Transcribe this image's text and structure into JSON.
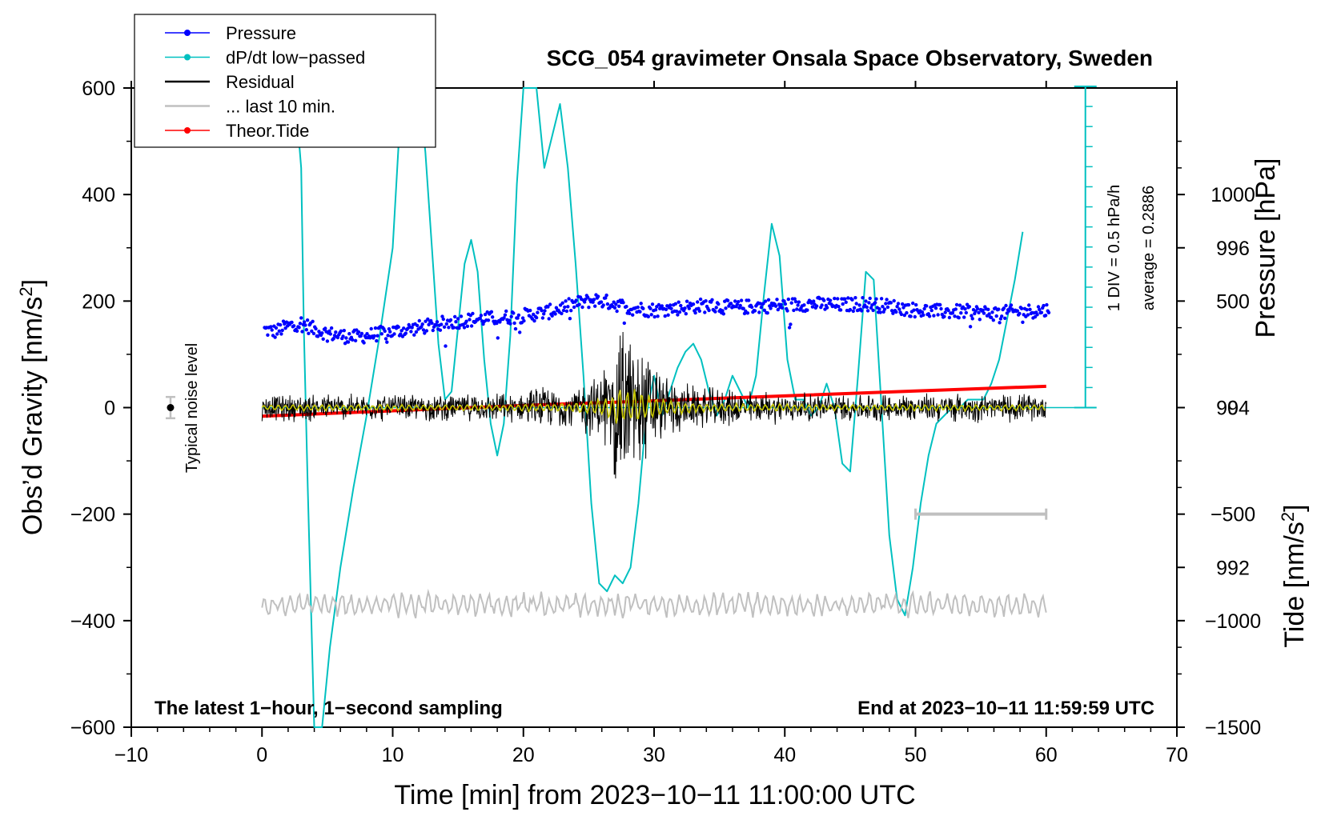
{
  "chart_data": {
    "type": "line",
    "title": "SCG_054 gravimeter Onsala Space Observatory, Sweden",
    "xlabel": "Time [min] from 2023−10−11 11:00:00 UTC",
    "ylabel_left": "Obs’d Gravity [nm/s",
    "ylabel_left_sup": "2",
    "ylabel_left_close": "]",
    "ylabel_right_pressure": "Pressure [hPa]",
    "ylabel_right_tide": "Tide [nm/s",
    "ylabel_right_tide_sup": "2",
    "ylabel_right_tide_close": "]",
    "xlim": [
      -10,
      70
    ],
    "ylim": [
      -600,
      600
    ],
    "pressure_lim": [
      990,
      998
    ],
    "tide_lim": [
      -1500,
      1500
    ],
    "x_ticks": [
      -10,
      0,
      10,
      20,
      30,
      40,
      50,
      60,
      70
    ],
    "x_tick_labels": [
      "−10",
      "0",
      "10",
      "20",
      "30",
      "40",
      "50",
      "60",
      "70"
    ],
    "y_ticks": [
      -600,
      -400,
      -200,
      0,
      200,
      400,
      600
    ],
    "y_tick_labels": [
      "−600",
      "−400",
      "−200",
      "0",
      "200",
      "400",
      "600"
    ],
    "pressure_ticks": [
      992,
      994,
      996
    ],
    "pressure_tick_labels": [
      "992",
      "994",
      "996"
    ],
    "tide_ticks": [
      -1500,
      -1000,
      -500,
      0,
      500,
      1000
    ],
    "tide_tick_labels": [
      "−1500",
      "−1000",
      "−500",
      "0",
      "500",
      "1000"
    ],
    "legend": [
      {
        "label": "Pressure",
        "color": "#0000ff",
        "marker": true
      },
      {
        "label": "dP/dt low−passed",
        "color": "#00c0c0",
        "marker": true
      },
      {
        "label": "Residual",
        "color": "#000000",
        "marker": false
      },
      {
        "label": "... last 10 min.",
        "color": "#c0c0c0",
        "marker": false
      },
      {
        "label": "Theor.Tide",
        "color": "#ff0000",
        "marker": true
      }
    ],
    "annotations": {
      "footer_left": "The latest 1−hour, 1−second sampling",
      "footer_right": "End at 2023−10−11 11:59:59 UTC",
      "noise_label": "Typical noise level",
      "dpdt_scale": "1 DIV = 0.5 hPa/h",
      "dpdt_average": "average = 0.2886"
    },
    "noise_level": {
      "x": -7,
      "y": 0,
      "halfwidth": 20
    },
    "last_10min_bar": {
      "x_start": 50,
      "x_end": 60,
      "y": -200
    },
    "dpdt_baseline_pressure": 994,
    "series": [
      {
        "name": "Pressure",
        "axis": "pressure",
        "color": "#0000ff",
        "x": [
          0,
          1,
          2,
          3,
          4,
          5,
          6,
          7,
          8,
          10,
          12,
          14,
          16,
          18,
          20,
          22,
          24,
          25.5,
          27,
          28,
          30,
          32,
          34,
          36,
          38,
          40,
          42,
          44,
          46,
          48,
          50,
          52,
          54,
          56,
          58,
          60
        ],
        "values": [
          994.98,
          994.95,
          995.02,
          995.06,
          994.98,
          994.93,
          994.9,
          994.88,
          994.9,
          994.95,
          995.0,
          995.06,
          995.1,
          995.12,
          995.15,
          995.2,
          995.3,
          995.35,
          995.3,
          995.25,
          995.22,
          995.25,
          995.28,
          995.25,
          995.27,
          995.28,
          995.3,
          995.28,
          995.3,
          995.27,
          995.22,
          995.2,
          995.2,
          995.18,
          995.2,
          995.22
        ]
      },
      {
        "name": "dP/dt low−passed",
        "axis": "pressure",
        "color": "#00c0c0",
        "x": [
          2.5,
          3.0,
          3.2,
          3.5,
          4.0,
          4.6,
          5.2,
          6.0,
          7.0,
          8.0,
          9.0,
          10.0,
          10.7,
          11.5,
          12.0,
          12.5,
          13.0,
          13.5,
          14.0,
          14.5,
          15.0,
          15.5,
          16.0,
          16.5,
          17.0,
          17.5,
          18.0,
          18.5,
          19.0,
          19.5,
          20.0,
          20.5,
          21.0,
          21.6,
          22.2,
          22.8,
          23.4,
          24.0,
          24.6,
          25.2,
          25.8,
          26.4,
          27.0,
          27.6,
          28.2,
          28.8,
          29.4,
          30.0,
          30.6,
          31.2,
          31.8,
          32.4,
          33.0,
          33.6,
          34.2,
          34.8,
          35.4,
          36.0,
          36.6,
          37.2,
          37.8,
          38.4,
          39.0,
          39.6,
          40.2,
          40.8,
          41.4,
          42.0,
          42.6,
          43.2,
          43.8,
          44.4,
          45.0,
          45.6,
          46.2,
          46.8,
          47.4,
          48.0,
          48.6,
          49.2,
          49.8,
          50.4,
          51.0,
          51.6,
          52.2,
          52.8,
          53.4,
          54.0,
          54.6,
          55.2,
          55.8,
          56.4,
          57.0,
          57.6,
          58.2
        ],
        "values": [
          998.0,
          997.0,
          995.0,
          993.0,
          990.0,
          990.0,
          991.0,
          992.0,
          993.0,
          993.9,
          994.9,
          996.0,
          998.0,
          999.5,
          998.6,
          997.2,
          996.0,
          994.8,
          994.1,
          994.2,
          995.0,
          995.8,
          996.1,
          995.7,
          994.6,
          993.8,
          993.4,
          993.8,
          994.9,
          996.8,
          999.5,
          1000.8,
          998.5,
          997.0,
          997.4,
          997.8,
          997.0,
          995.8,
          994.4,
          992.8,
          991.8,
          991.7,
          991.9,
          991.8,
          992.0,
          992.8,
          993.9,
          994.4,
          993.9,
          994.2,
          994.5,
          994.7,
          994.8,
          994.6,
          994.2,
          993.9,
          994.1,
          994.4,
          994.2,
          994.0,
          994.4,
          995.4,
          996.3,
          995.9,
          994.6,
          994.1,
          994.1,
          993.9,
          994.0,
          994.3,
          994.0,
          993.3,
          993.2,
          994.4,
          995.7,
          995.6,
          994.0,
          992.4,
          991.6,
          991.4,
          992.0,
          992.8,
          993.4,
          993.8,
          993.9,
          994.0,
          994.0,
          994.1,
          994.1,
          994.1,
          994.3,
          994.6,
          995.1,
          995.6,
          996.2
        ]
      },
      {
        "name": "Theor.Tide",
        "axis": "tide",
        "color": "#ff0000",
        "x": [
          0,
          10,
          20,
          30,
          40,
          50,
          60
        ],
        "values": [
          -40,
          -15,
          10,
          32,
          55,
          78,
          100
        ]
      }
    ],
    "residual_envelope": {
      "x": [
        0,
        4,
        8,
        12,
        16,
        18,
        20,
        21,
        22,
        24,
        25,
        26,
        26.8,
        27.4,
        28,
        28.6,
        29.2,
        30,
        31,
        32,
        33,
        36,
        40,
        45,
        50,
        55,
        60
      ],
      "amplitude": [
        27,
        30,
        28,
        28,
        28,
        30,
        30,
        45,
        42,
        45,
        60,
        80,
        140,
        190,
        170,
        160,
        140,
        90,
        70,
        55,
        45,
        38,
        32,
        28,
        30,
        30,
        28
      ]
    }
  }
}
